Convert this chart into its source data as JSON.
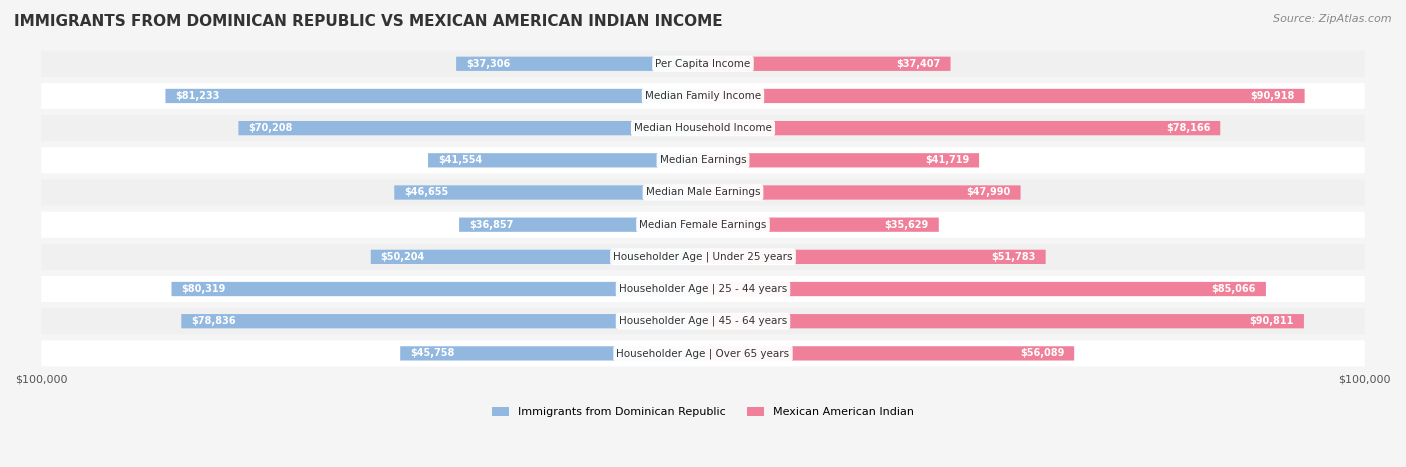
{
  "title": "IMMIGRANTS FROM DOMINICAN REPUBLIC VS MEXICAN AMERICAN INDIAN INCOME",
  "source": "Source: ZipAtlas.com",
  "categories": [
    "Per Capita Income",
    "Median Family Income",
    "Median Household Income",
    "Median Earnings",
    "Median Male Earnings",
    "Median Female Earnings",
    "Householder Age | Under 25 years",
    "Householder Age | 25 - 44 years",
    "Householder Age | 45 - 64 years",
    "Householder Age | Over 65 years"
  ],
  "left_values": [
    37306,
    81233,
    70208,
    41554,
    46655,
    36857,
    50204,
    80319,
    78836,
    45758
  ],
  "right_values": [
    37407,
    90918,
    78166,
    41719,
    47990,
    35629,
    51783,
    85066,
    90811,
    56089
  ],
  "left_labels": [
    "$37,306",
    "$81,233",
    "$70,208",
    "$41,554",
    "$46,655",
    "$36,857",
    "$50,204",
    "$80,319",
    "$78,836",
    "$45,758"
  ],
  "right_labels": [
    "$37,407",
    "$90,918",
    "$78,166",
    "$41,719",
    "$47,990",
    "$35,629",
    "$51,783",
    "$85,066",
    "$90,811",
    "$56,089"
  ],
  "left_color": "#92b8e0",
  "right_color": "#f0809a",
  "left_color_dark": "#6699cc",
  "right_color_dark": "#e05070",
  "max_value": 100000,
  "legend_left": "Immigrants from Dominican Republic",
  "legend_right": "Mexican American Indian",
  "bg_color": "#f5f5f5",
  "row_bg_color": "#f0f0f0",
  "row_bg_alt": "#ffffff"
}
